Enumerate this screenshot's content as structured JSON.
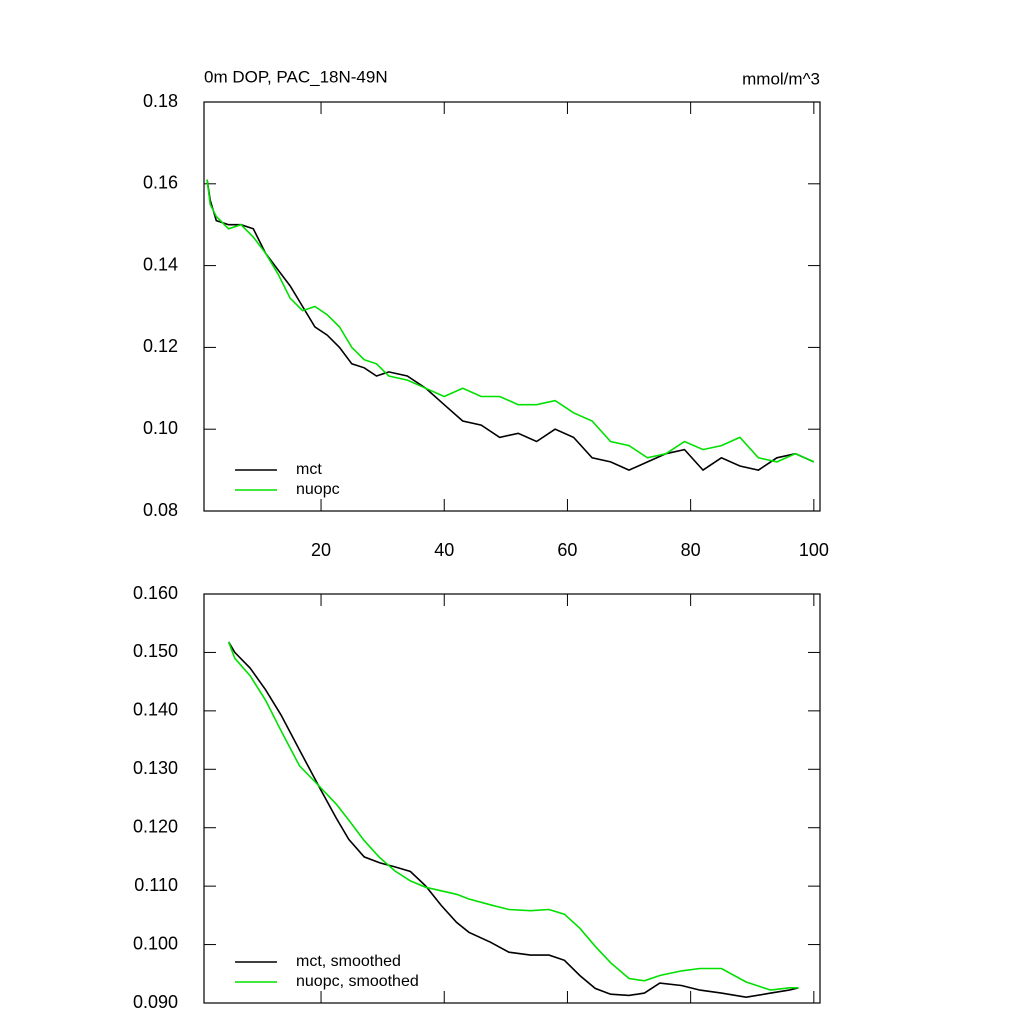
{
  "chart_data": [
    {
      "type": "line",
      "title": "0m DOP, PAC_18N-49N",
      "units": "mmol/m^3",
      "x": [
        1.5,
        2,
        3,
        5,
        7,
        9,
        11,
        13,
        15,
        17,
        19,
        21,
        23,
        25,
        27,
        29,
        31,
        34,
        37,
        40,
        43,
        46,
        49,
        52,
        55,
        58,
        61,
        64,
        67,
        70,
        73,
        76,
        79,
        82,
        85,
        88,
        91,
        94,
        97,
        100
      ],
      "series": [
        {
          "name": "mct",
          "color": "#000000",
          "values": [
            0.161,
            0.156,
            0.151,
            0.15,
            0.15,
            0.149,
            0.143,
            0.139,
            0.135,
            0.13,
            0.125,
            0.123,
            0.12,
            0.116,
            0.115,
            0.113,
            0.114,
            0.113,
            0.11,
            0.106,
            0.102,
            0.101,
            0.098,
            0.099,
            0.097,
            0.1,
            0.098,
            0.093,
            0.092,
            0.09,
            0.092,
            0.094,
            0.095,
            0.09,
            0.093,
            0.091,
            0.09,
            0.093,
            0.094,
            0.092
          ]
        },
        {
          "name": "nuopc",
          "color": "#00e000",
          "values": [
            0.161,
            0.155,
            0.152,
            0.149,
            0.15,
            0.147,
            0.143,
            0.138,
            0.132,
            0.129,
            0.13,
            0.128,
            0.125,
            0.12,
            0.117,
            0.116,
            0.113,
            0.112,
            0.11,
            0.108,
            0.11,
            0.108,
            0.108,
            0.106,
            0.106,
            0.107,
            0.104,
            0.102,
            0.097,
            0.096,
            0.093,
            0.094,
            0.097,
            0.095,
            0.096,
            0.098,
            0.093,
            0.092,
            0.094,
            0.092
          ]
        }
      ],
      "xlim": [
        1,
        101
      ],
      "xticks": [
        20,
        40,
        60,
        80,
        100
      ],
      "ylim": [
        0.08,
        0.18
      ],
      "yticks": [
        {
          "value": 0.08,
          "label": "0.08"
        },
        {
          "value": 0.1,
          "label": "0.10"
        },
        0.12,
        0.14,
        0.16,
        0.18
      ],
      "legend": "lower left"
    },
    {
      "type": "line",
      "x": [
        5,
        6,
        8.5,
        11,
        13.5,
        16.5,
        20,
        22.5,
        24.5,
        27,
        29.5,
        32,
        34.5,
        37,
        39.5,
        42,
        44,
        47.5,
        50.5,
        54,
        57,
        59.5,
        62,
        64.5,
        67,
        70,
        72.5,
        75,
        78.5,
        81.5,
        85,
        89,
        93,
        96,
        97.5
      ],
      "series": [
        {
          "name": "mct, smoothed",
          "color": "#000000",
          "values": [
            0.1518,
            0.15,
            0.1473,
            0.1436,
            0.1393,
            0.1333,
            0.1264,
            0.1216,
            0.118,
            0.115,
            0.114,
            0.1133,
            0.1125,
            0.11,
            0.1067,
            0.1038,
            0.1021,
            0.1004,
            0.0987,
            0.0982,
            0.0982,
            0.0973,
            0.0947,
            0.0925,
            0.0915,
            0.0913,
            0.0917,
            0.0934,
            0.093,
            0.0922,
            0.0917,
            0.091,
            0.0917,
            0.0922,
            0.0926
          ]
        },
        {
          "name": "nuopc, smoothed",
          "color": "#00e000",
          "values": [
            0.1518,
            0.149,
            0.146,
            0.1418,
            0.1366,
            0.1306,
            0.1268,
            0.124,
            0.1213,
            0.1178,
            0.1149,
            0.1126,
            0.1109,
            0.1098,
            0.1092,
            0.1086,
            0.1078,
            0.1068,
            0.106,
            0.1058,
            0.106,
            0.1052,
            0.1028,
            0.0997,
            0.0969,
            0.0942,
            0.0938,
            0.0947,
            0.0955,
            0.0959,
            0.0959,
            0.0936,
            0.0922,
            0.0926,
            0.0926
          ]
        }
      ],
      "xlim": [
        1,
        101
      ],
      "xticks": [
        20,
        40,
        60,
        80,
        100
      ],
      "ylim": [
        0.09,
        0.16
      ],
      "yticks": [
        {
          "value": 0.09,
          "label": "0.090"
        },
        {
          "value": 0.1,
          "label": "0.100"
        },
        {
          "value": 0.11,
          "label": "0.110"
        },
        {
          "value": 0.12,
          "label": "0.120"
        },
        {
          "value": 0.13,
          "label": "0.130"
        },
        {
          "value": 0.14,
          "label": "0.140"
        },
        {
          "value": 0.15,
          "label": "0.150"
        },
        {
          "value": 0.16,
          "label": "0.160"
        }
      ],
      "legend": "lower left"
    }
  ]
}
